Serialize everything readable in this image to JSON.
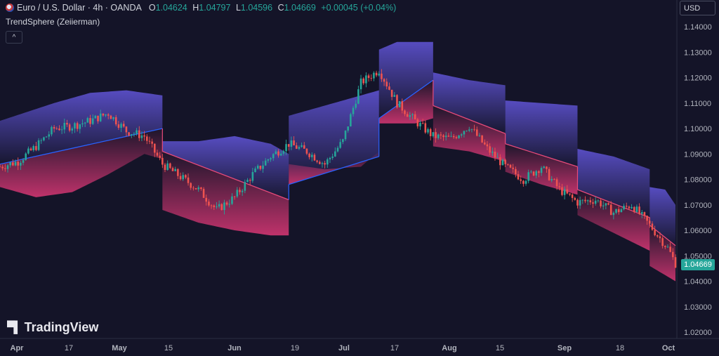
{
  "header": {
    "symbol_title": "Euro / U.S. Dollar · 4h · OANDA",
    "ohlc": [
      {
        "k": "O",
        "v": "1.04624"
      },
      {
        "k": "H",
        "v": "1.04797"
      },
      {
        "k": "L",
        "v": "1.04596"
      },
      {
        "k": "C",
        "v": "1.04669"
      }
    ],
    "change": "+0.00045 (+0.04%)",
    "indicator_name": "TrendSphere (Zeiierman)",
    "collapse_glyph": "^"
  },
  "currency_label": "USD",
  "current_price": "1.04669",
  "logo_text": "TradingView",
  "colors": {
    "background": "#141428",
    "up": "#26a69a",
    "down": "#ef5350",
    "trend_up": "#2962ff",
    "trend_down": "#e84a7a",
    "band_upper": "#5a4fc8",
    "band_lower": "#c8346e"
  },
  "chart_data": {
    "type": "line",
    "title": "",
    "xlabel": "",
    "ylabel": "",
    "ylim": [
      1.015,
      1.145
    ],
    "y_ticks": [
      "1.14000",
      "1.13000",
      "1.12000",
      "1.11000",
      "1.10000",
      "1.09000",
      "1.08000",
      "1.07000",
      "1.06000",
      "1.05000",
      "1.04000",
      "1.03000",
      "1.02000"
    ],
    "x_ticks": [
      "Apr",
      "17",
      "May",
      "15",
      "Jun",
      "19",
      "Jul",
      "17",
      "Aug",
      "15",
      "Sep",
      "18",
      "Oct"
    ],
    "series": [
      {
        "kind": "price",
        "points": [
          [
            0,
            1.085
          ],
          [
            7,
            1.087
          ],
          [
            14,
            1.093
          ],
          [
            21,
            1.1
          ],
          [
            28,
            1.101
          ],
          [
            35,
            1.103
          ],
          [
            42,
            1.106
          ],
          [
            49,
            1.099
          ],
          [
            56,
            1.097
          ],
          [
            63,
            1.086
          ],
          [
            70,
            1.081
          ],
          [
            77,
            1.076
          ],
          [
            84,
            1.068
          ],
          [
            91,
            1.073
          ],
          [
            98,
            1.082
          ],
          [
            105,
            1.089
          ],
          [
            112,
            1.094
          ],
          [
            119,
            1.091
          ],
          [
            126,
            1.086
          ],
          [
            133,
            1.095
          ],
          [
            140,
            1.118
          ],
          [
            147,
            1.123
          ],
          [
            154,
            1.11
          ],
          [
            161,
            1.103
          ],
          [
            168,
            1.097
          ],
          [
            175,
            1.096
          ],
          [
            182,
            1.101
          ],
          [
            189,
            1.092
          ],
          [
            196,
            1.085
          ],
          [
            203,
            1.08
          ],
          [
            210,
            1.085
          ],
          [
            217,
            1.076
          ],
          [
            224,
            1.071
          ],
          [
            231,
            1.072
          ],
          [
            238,
            1.067
          ],
          [
            245,
            1.07
          ],
          [
            252,
            1.062
          ],
          [
            259,
            1.053
          ],
          [
            262,
            1.047
          ]
        ]
      },
      {
        "kind": "trend",
        "segments": [
          {
            "dir": "up",
            "points": [
              [
                0,
                1.086
              ],
              [
                63,
                1.1
              ]
            ]
          },
          {
            "dir": "down",
            "points": [
              [
                63,
                1.091
              ],
              [
                112,
                1.072
              ]
            ]
          },
          {
            "dir": "up",
            "points": [
              [
                112,
                1.078
              ],
              [
                147,
                1.089
              ]
            ]
          },
          {
            "dir": "up",
            "points": [
              [
                147,
                1.104
              ],
              [
                168,
                1.119
              ]
            ]
          },
          {
            "dir": "down",
            "points": [
              [
                168,
                1.109
              ],
              [
                196,
                1.098
              ]
            ]
          },
          {
            "dir": "down",
            "points": [
              [
                196,
                1.094
              ],
              [
                224,
                1.085
              ]
            ]
          },
          {
            "dir": "down",
            "points": [
              [
                224,
                1.076
              ],
              [
                252,
                1.065
              ]
            ]
          },
          {
            "dir": "down",
            "points": [
              [
                252,
                1.062
              ],
              [
                262,
                1.054
              ]
            ]
          }
        ]
      },
      {
        "kind": "upper_band",
        "segments": [
          [
            [
              0,
              1.103
            ],
            [
              21,
              1.11
            ],
            [
              35,
              1.114
            ],
            [
              49,
              1.115
            ],
            [
              63,
              1.113
            ]
          ],
          [
            [
              63,
              1.095
            ],
            [
              77,
              1.095
            ],
            [
              91,
              1.097
            ],
            [
              105,
              1.094
            ],
            [
              112,
              1.09
            ]
          ],
          [
            [
              112,
              1.105
            ],
            [
              126,
              1.109
            ],
            [
              140,
              1.113
            ],
            [
              147,
              1.115
            ]
          ],
          [
            [
              147,
              1.131
            ],
            [
              154,
              1.134
            ],
            [
              168,
              1.134
            ]
          ],
          [
            [
              168,
              1.122
            ],
            [
              182,
              1.119
            ],
            [
              196,
              1.117
            ]
          ],
          [
            [
              196,
              1.111
            ],
            [
              210,
              1.11
            ],
            [
              224,
              1.109
            ]
          ],
          [
            [
              224,
              1.092
            ],
            [
              238,
              1.089
            ],
            [
              252,
              1.084
            ]
          ],
          [
            [
              252,
              1.077
            ],
            [
              258,
              1.076
            ],
            [
              262,
              1.07
            ]
          ]
        ]
      },
      {
        "kind": "lower_band",
        "segments": [
          [
            [
              0,
              1.077
            ],
            [
              14,
              1.073
            ],
            [
              28,
              1.075
            ],
            [
              42,
              1.082
            ],
            [
              56,
              1.09
            ],
            [
              63,
              1.088
            ]
          ],
          [
            [
              63,
              1.068
            ],
            [
              77,
              1.063
            ],
            [
              91,
              1.06
            ],
            [
              105,
              1.058
            ],
            [
              112,
              1.058
            ]
          ],
          [
            [
              112,
              1.086
            ],
            [
              126,
              1.084
            ],
            [
              140,
              1.085
            ],
            [
              147,
              1.091
            ]
          ],
          [
            [
              147,
              1.102
            ],
            [
              161,
              1.102
            ],
            [
              168,
              1.104
            ]
          ],
          [
            [
              168,
              1.093
            ],
            [
              182,
              1.091
            ],
            [
              196,
              1.087
            ]
          ],
          [
            [
              196,
              1.083
            ],
            [
              210,
              1.078
            ],
            [
              224,
              1.074
            ]
          ],
          [
            [
              224,
              1.066
            ],
            [
              238,
              1.059
            ],
            [
              252,
              1.052
            ]
          ],
          [
            [
              252,
              1.046
            ],
            [
              262,
              1.04
            ]
          ]
        ]
      }
    ]
  }
}
